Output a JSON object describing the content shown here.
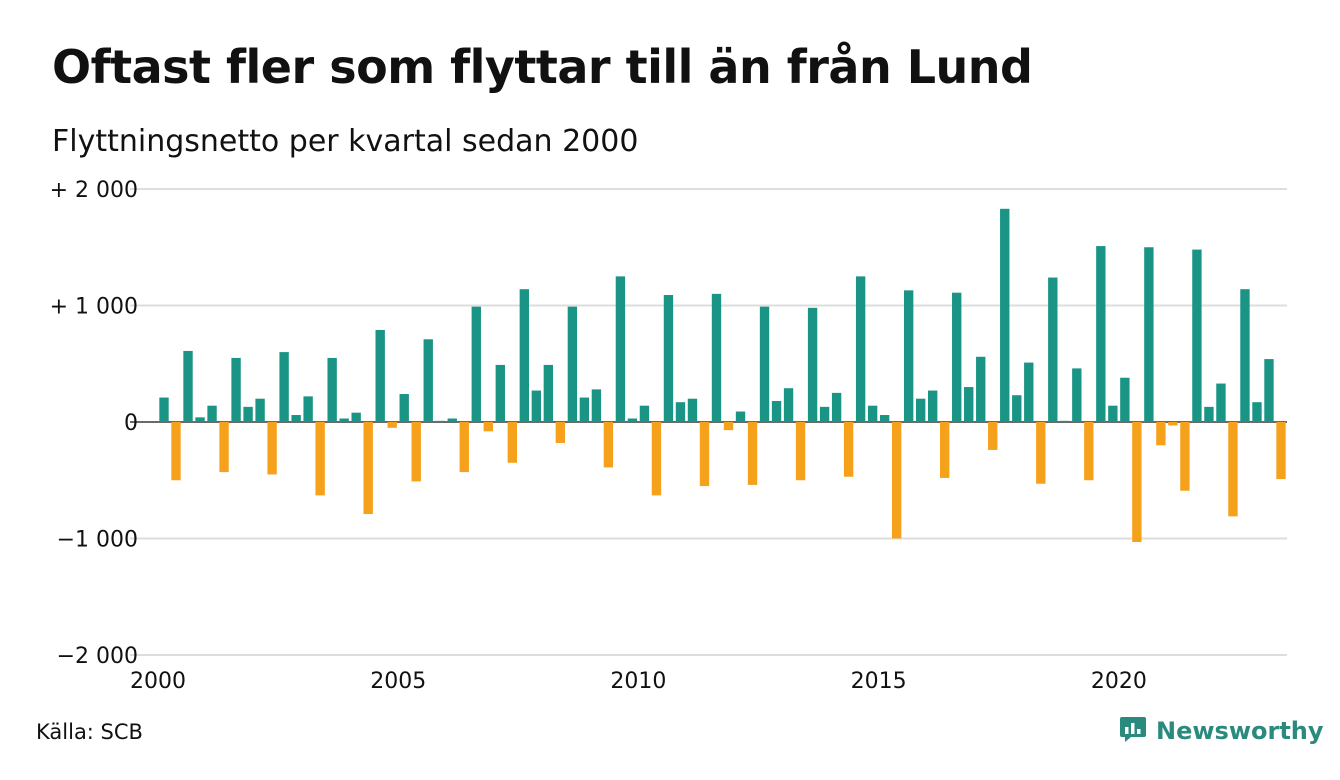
{
  "header": {
    "title": "Oftast fler som flyttar till än från Lund",
    "subtitle": "Flyttningsnetto per kvartal sedan 2000"
  },
  "footer": {
    "source": "Källa: SCB",
    "brand": "Newsworthy",
    "brand_icon": "chart-bubble-icon"
  },
  "colors": {
    "positive": "#1a9485",
    "negative": "#f5a11c",
    "grid": "#dddddd",
    "brand": "#2a8a7e"
  },
  "chart_data": {
    "type": "bar",
    "x_unit": "quarter",
    "xlim": [
      2000,
      2023.5
    ],
    "ylim": [
      -2000,
      2000
    ],
    "grid": true,
    "x_ticks": [
      {
        "value": 2000,
        "label": "2000"
      },
      {
        "value": 2005,
        "label": "2005"
      },
      {
        "value": 2010,
        "label": "2010"
      },
      {
        "value": 2015,
        "label": "2015"
      },
      {
        "value": 2020,
        "label": "2020"
      }
    ],
    "y_ticks": [
      {
        "value": 2000,
        "label": "+ 2 000"
      },
      {
        "value": 1000,
        "label": "+ 1 000"
      },
      {
        "value": 0,
        "label": "0"
      },
      {
        "value": -1000,
        "label": "−1 000"
      },
      {
        "value": -2000,
        "label": "−2 000"
      }
    ],
    "categories": [
      "2000 K1",
      "2000 K2",
      "2000 K3",
      "2000 K4",
      "2001 K1",
      "2001 K2",
      "2001 K3",
      "2001 K4",
      "2002 K1",
      "2002 K2",
      "2002 K3",
      "2002 K4",
      "2003 K1",
      "2003 K2",
      "2003 K3",
      "2003 K4",
      "2004 K1",
      "2004 K2",
      "2004 K3",
      "2004 K4",
      "2005 K1",
      "2005 K2",
      "2005 K3",
      "2005 K4",
      "2006 K1",
      "2006 K2",
      "2006 K3",
      "2006 K4",
      "2007 K1",
      "2007 K2",
      "2007 K3",
      "2007 K4",
      "2008 K1",
      "2008 K2",
      "2008 K3",
      "2008 K4",
      "2009 K1",
      "2009 K2",
      "2009 K3",
      "2009 K4",
      "2010 K1",
      "2010 K2",
      "2010 K3",
      "2010 K4",
      "2011 K1",
      "2011 K2",
      "2011 K3",
      "2011 K4",
      "2012 K1",
      "2012 K2",
      "2012 K3",
      "2012 K4",
      "2013 K1",
      "2013 K2",
      "2013 K3",
      "2013 K4",
      "2014 K1",
      "2014 K2",
      "2014 K3",
      "2014 K4",
      "2015 K1",
      "2015 K2",
      "2015 K3",
      "2015 K4",
      "2016 K1",
      "2016 K2",
      "2016 K3",
      "2016 K4",
      "2017 K1",
      "2017 K2",
      "2017 K3",
      "2017 K4",
      "2018 K1",
      "2018 K2",
      "2018 K3",
      "2018 K4",
      "2019 K1",
      "2019 K2",
      "2019 K3",
      "2019 K4",
      "2020 K1",
      "2020 K2",
      "2020 K3",
      "2020 K4",
      "2021 K1",
      "2021 K2",
      "2021 K3",
      "2021 K4",
      "2022 K1",
      "2022 K2",
      "2022 K3",
      "2022 K4",
      "2023 K1",
      "2023 K2"
    ],
    "values": [
      210,
      -500,
      610,
      40,
      140,
      -430,
      550,
      130,
      200,
      -450,
      600,
      60,
      220,
      -630,
      550,
      30,
      80,
      -790,
      790,
      -50,
      240,
      -510,
      710,
      10,
      30,
      -430,
      990,
      -80,
      490,
      -350,
      1140,
      270,
      490,
      -180,
      990,
      210,
      280,
      -390,
      1250,
      30,
      140,
      -630,
      1090,
      170,
      200,
      -550,
      1100,
      -70,
      90,
      -540,
      990,
      180,
      290,
      -500,
      980,
      130,
      250,
      -470,
      1250,
      140,
      60,
      -1000,
      1130,
      200,
      270,
      -480,
      1110,
      300,
      560,
      -240,
      1830,
      230,
      510,
      -530,
      1240,
      10,
      460,
      -500,
      1510,
      140,
      380,
      -1030,
      1500,
      -200,
      -30,
      -590,
      1480,
      130,
      330,
      -810,
      1140,
      170,
      540,
      -490
    ]
  }
}
